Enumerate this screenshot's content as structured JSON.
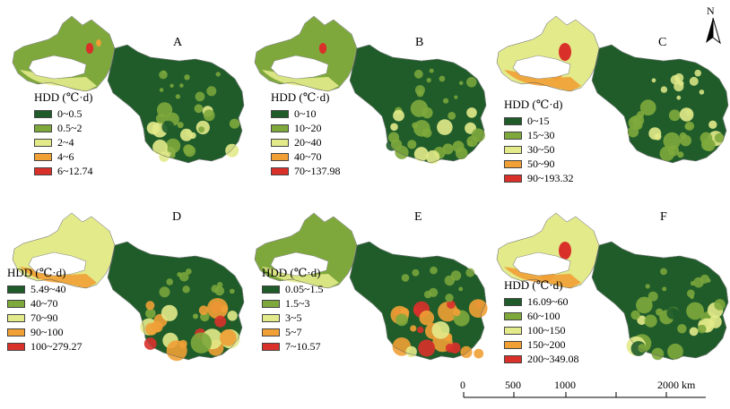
{
  "panels": [
    {
      "letter": "A",
      "legend_title": "HDD (℃·d)",
      "classes": [
        "0~0.5",
        "0.5~2",
        "2~4",
        "4~6",
        "6~12.74"
      ]
    },
    {
      "letter": "B",
      "legend_title": "HDD (℃·d)",
      "classes": [
        "0~10",
        "10~20",
        "20~40",
        "40~70",
        "70~137.98"
      ]
    },
    {
      "letter": "C",
      "legend_title": "HDD (℃·d)",
      "classes": [
        "0~15",
        "15~30",
        "30~50",
        "50~90",
        "90~193.32"
      ]
    },
    {
      "letter": "D",
      "legend_title": "HDD (℃·d)",
      "classes": [
        "5.49~40",
        "40~70",
        "70~90",
        "90~100",
        "100~279.27"
      ]
    },
    {
      "letter": "E",
      "legend_title": "HDD (℃·d)",
      "classes": [
        "0.05~1.5",
        "1.5~3",
        "3~5",
        "5~7",
        "7~10.57"
      ]
    },
    {
      "letter": "F",
      "legend_title": "HDD (℃·d)",
      "classes": [
        "16.09~60",
        "60~100",
        "100~150",
        "150~200",
        "200~349.08"
      ]
    }
  ],
  "class_colors": [
    "#1f5c2a",
    "#7ea83c",
    "#e3ea8a",
    "#f0a035",
    "#d9302a"
  ],
  "north_arrow": {
    "label": "N"
  },
  "scale_bar": {
    "ticks": [
      "0",
      "500",
      "1000",
      "2000 km"
    ]
  }
}
